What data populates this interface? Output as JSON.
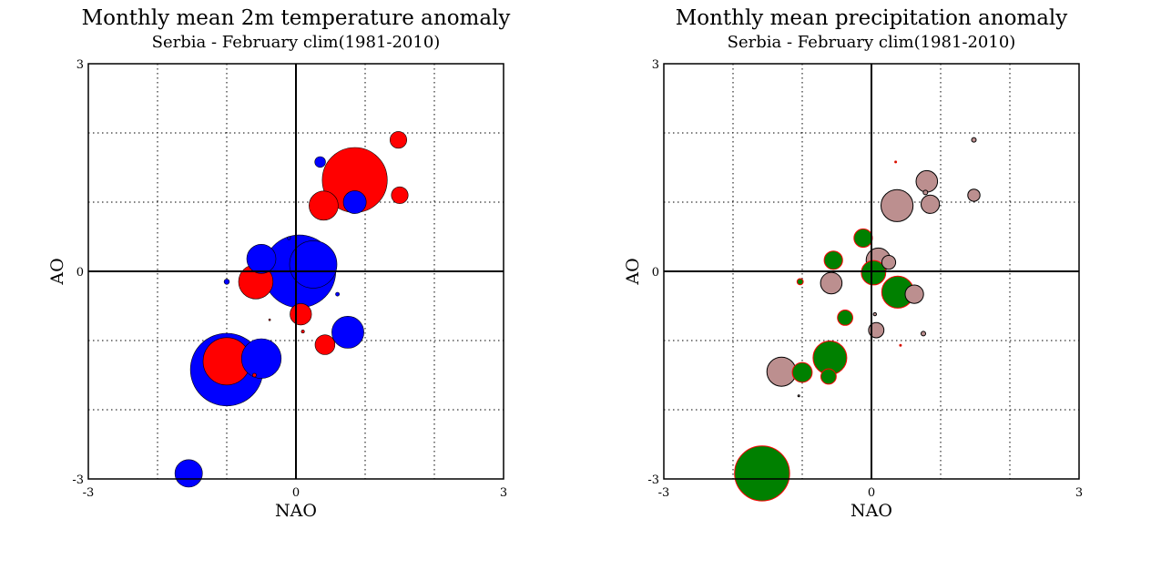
{
  "chart_data": [
    {
      "type": "scatter",
      "title": "Monthly mean 2m temperature anomaly",
      "subtitle": "Serbia - February  clim(1981-2010)",
      "xlabel": "NAO",
      "ylabel": "AO",
      "xlim": [
        -3,
        3
      ],
      "ylim": [
        -3,
        3
      ],
      "xticks": [
        "-3",
        "0",
        "3"
      ],
      "yticks": [
        "-3",
        "0",
        "3"
      ],
      "grid": "dotted",
      "colors": {
        "positive": "#ff0000",
        "negative": "#0000ff"
      },
      "points": [
        {
          "x": -1.55,
          "y": -2.92,
          "size": 0.36,
          "sign": "negative"
        },
        {
          "x": -1.0,
          "y": -1.42,
          "size": 0.95,
          "sign": "negative"
        },
        {
          "x": -0.5,
          "y": -1.26,
          "size": 0.52,
          "sign": "negative"
        },
        {
          "x": -1.0,
          "y": -1.3,
          "size": 0.62,
          "sign": "positive"
        },
        {
          "x": -0.6,
          "y": -1.5,
          "size": 0.05,
          "sign": "positive"
        },
        {
          "x": 0.25,
          "y": 0.1,
          "size": 0.62,
          "sign": "negative"
        },
        {
          "x": 0.05,
          "y": 0.0,
          "size": 0.95,
          "sign": "negative"
        },
        {
          "x": -0.5,
          "y": 0.18,
          "size": 0.38,
          "sign": "negative"
        },
        {
          "x": -0.58,
          "y": -0.15,
          "size": 0.45,
          "sign": "positive"
        },
        {
          "x": -1.0,
          "y": -0.15,
          "size": 0.07,
          "sign": "negative"
        },
        {
          "x": -0.1,
          "y": 0.48,
          "size": 0.04,
          "sign": "negative"
        },
        {
          "x": -0.38,
          "y": -0.7,
          "size": 0.01,
          "sign": "positive"
        },
        {
          "x": 0.6,
          "y": -0.33,
          "size": 0.05,
          "sign": "negative"
        },
        {
          "x": 0.75,
          "y": -0.88,
          "size": 0.42,
          "sign": "negative"
        },
        {
          "x": 0.07,
          "y": -0.62,
          "size": 0.28,
          "sign": "positive"
        },
        {
          "x": 0.1,
          "y": -0.87,
          "size": 0.04,
          "sign": "positive"
        },
        {
          "x": 0.42,
          "y": -1.06,
          "size": 0.26,
          "sign": "positive"
        },
        {
          "x": 0.35,
          "y": 1.58,
          "size": 0.14,
          "sign": "negative"
        },
        {
          "x": 0.85,
          "y": 1.0,
          "size": 0.3,
          "sign": "negative"
        },
        {
          "x": 0.85,
          "y": 1.32,
          "size": 0.85,
          "sign": "positive"
        },
        {
          "x": 0.4,
          "y": 0.95,
          "size": 0.38,
          "sign": "positive"
        },
        {
          "x": 1.48,
          "y": 1.9,
          "size": 0.22,
          "sign": "positive"
        },
        {
          "x": 1.5,
          "y": 1.1,
          "size": 0.22,
          "sign": "positive"
        }
      ]
    },
    {
      "type": "scatter",
      "title": "Monthly mean precipitation anomaly",
      "subtitle": "Serbia - February  clim(1981-2010)",
      "xlabel": "NAO",
      "ylabel": "AO",
      "xlim": [
        -3,
        3
      ],
      "ylim": [
        -3,
        3
      ],
      "xticks": [
        "-3",
        "0",
        "3"
      ],
      "yticks": [
        "-3",
        "0",
        "3"
      ],
      "grid": "dotted",
      "colors": {
        "positive_fill": "#bc8f8f",
        "positive_stroke": "#000000",
        "negative_fill": "#008000",
        "negative_stroke": "#ff0000"
      },
      "points": [
        {
          "x": -1.58,
          "y": -2.92,
          "size": 0.72,
          "sign": "negative"
        },
        {
          "x": -1.3,
          "y": -1.45,
          "size": 0.38,
          "sign": "positive"
        },
        {
          "x": -1.0,
          "y": -1.46,
          "size": 0.26,
          "sign": "negative"
        },
        {
          "x": -1.05,
          "y": -1.8,
          "size": 0.02,
          "sign": "positive"
        },
        {
          "x": -1.03,
          "y": -0.15,
          "size": 0.08,
          "sign": "negative"
        },
        {
          "x": -0.6,
          "y": -1.25,
          "size": 0.44,
          "sign": "negative"
        },
        {
          "x": -0.62,
          "y": -1.52,
          "size": 0.2,
          "sign": "negative"
        },
        {
          "x": -0.58,
          "y": -0.17,
          "size": 0.28,
          "sign": "positive"
        },
        {
          "x": -0.55,
          "y": 0.16,
          "size": 0.24,
          "sign": "negative"
        },
        {
          "x": -0.38,
          "y": -0.67,
          "size": 0.2,
          "sign": "negative"
        },
        {
          "x": -0.12,
          "y": 0.48,
          "size": 0.24,
          "sign": "negative"
        },
        {
          "x": 0.1,
          "y": 0.16,
          "size": 0.32,
          "sign": "positive"
        },
        {
          "x": 0.25,
          "y": 0.13,
          "size": 0.18,
          "sign": "positive"
        },
        {
          "x": 0.03,
          "y": -0.02,
          "size": 0.32,
          "sign": "negative"
        },
        {
          "x": 0.05,
          "y": -0.62,
          "size": 0.04,
          "sign": "positive"
        },
        {
          "x": 0.07,
          "y": -0.85,
          "size": 0.2,
          "sign": "positive"
        },
        {
          "x": 0.38,
          "y": -0.3,
          "size": 0.42,
          "sign": "negative"
        },
        {
          "x": 0.62,
          "y": -0.33,
          "size": 0.24,
          "sign": "positive"
        },
        {
          "x": 0.42,
          "y": -1.07,
          "size": 0.02,
          "sign": "negative"
        },
        {
          "x": 0.37,
          "y": 0.95,
          "size": 0.42,
          "sign": "positive"
        },
        {
          "x": 0.35,
          "y": 1.58,
          "size": 0.02,
          "sign": "negative"
        },
        {
          "x": 0.75,
          "y": -0.9,
          "size": 0.06,
          "sign": "positive"
        },
        {
          "x": 0.8,
          "y": 1.3,
          "size": 0.28,
          "sign": "positive"
        },
        {
          "x": 0.78,
          "y": 1.14,
          "size": 0.06,
          "sign": "positive"
        },
        {
          "x": 0.85,
          "y": 0.97,
          "size": 0.24,
          "sign": "positive"
        },
        {
          "x": 1.48,
          "y": 1.9,
          "size": 0.06,
          "sign": "positive"
        },
        {
          "x": 1.48,
          "y": 1.1,
          "size": 0.16,
          "sign": "positive"
        }
      ]
    }
  ]
}
